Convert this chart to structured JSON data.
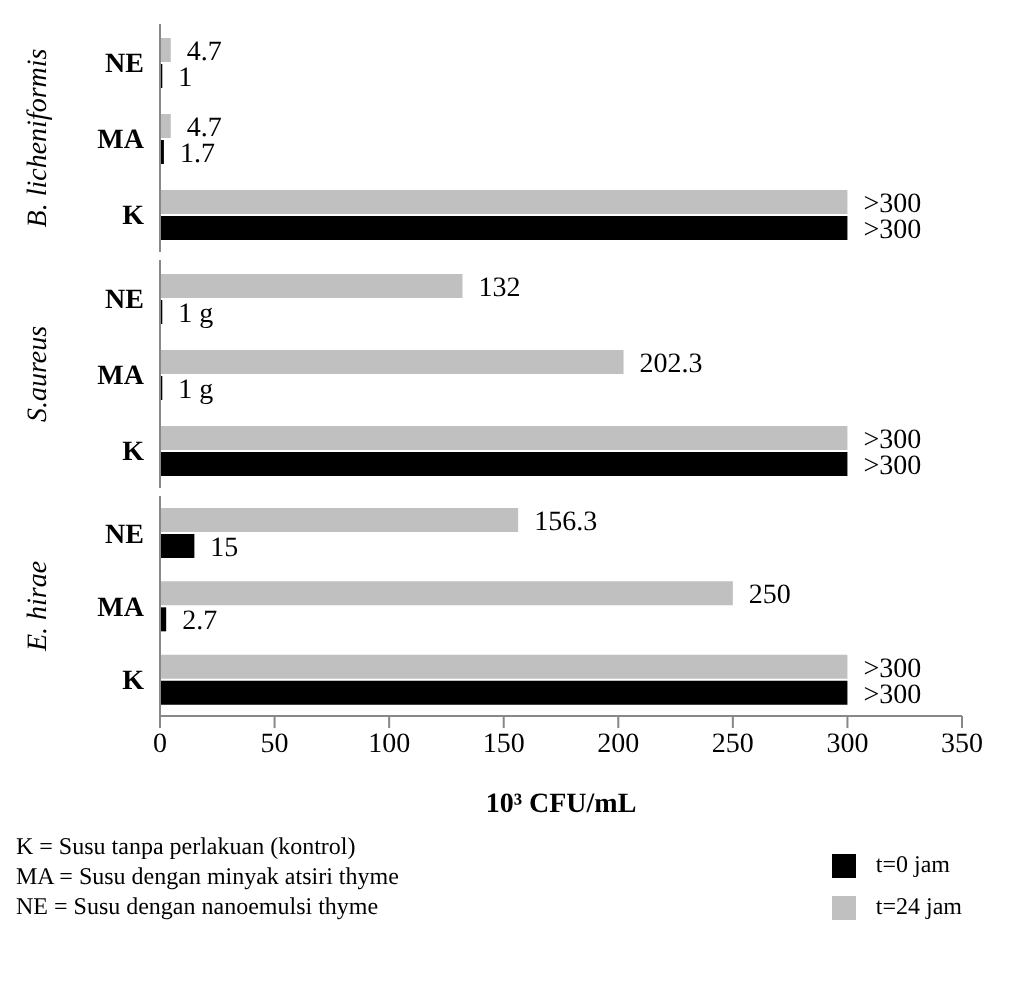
{
  "chart_data": [
    {
      "type": "bar",
      "orientation": "horizontal",
      "ylabel": "B. licheniformis",
      "categories": [
        "NE",
        "MA",
        "K"
      ],
      "xlim": [
        0,
        350
      ],
      "xticks": [
        0,
        50,
        100,
        150,
        200,
        250,
        300,
        350
      ],
      "tick_labels": "y",
      "series": [
        {
          "color": "#000000",
          "values": [
            1,
            1.7,
            300
          ],
          "value_labels": [
            "1",
            "1.7",
            ">300"
          ]
        },
        {
          "color": "#c0c0c0",
          "values": [
            4.7,
            4.7,
            300
          ],
          "value_labels": [
            "4.7",
            "4.7",
            ">300"
          ]
        }
      ]
    },
    {
      "type": "bar",
      "orientation": "horizontal",
      "ylabel": "S.aureus",
      "categories": [
        "NE",
        "MA",
        "K"
      ],
      "xlim": [
        0,
        350
      ],
      "xticks": [
        0,
        50,
        100,
        150,
        200,
        250,
        300,
        350
      ],
      "tick_labels": "y",
      "series": [
        {
          "color": "#000000",
          "values": [
            1,
            1,
            300
          ],
          "value_labels": [
            "1 g",
            "1 g",
            ">300"
          ]
        },
        {
          "color": "#c0c0c0",
          "values": [
            132,
            202.3,
            300
          ],
          "value_labels": [
            "132",
            "202.3",
            ">300"
          ]
        }
      ]
    },
    {
      "type": "bar",
      "orientation": "horizontal",
      "ylabel": "E. hirae",
      "xlabel": "10³ CFU/mL",
      "categories": [
        "NE",
        "MA",
        "K"
      ],
      "xlim": [
        0,
        350
      ],
      "xticks": [
        0,
        50,
        100,
        150,
        200,
        250,
        300,
        350
      ],
      "legend": "bottom right",
      "annotations": [
        "K = Susu tanpa perlakuan (kontrol)",
        "MA = Susu dengan minyak atsiri thyme",
        "NE = Susu dengan nanoemulsi thyme"
      ],
      "series": [
        {
          "name": "t=0 jam",
          "color": "#000000",
          "values": [
            15,
            2.7,
            300
          ],
          "value_labels": [
            "15",
            "2.7",
            ">300"
          ]
        },
        {
          "name": "t=24 jam",
          "color": "#c0c0c0",
          "values": [
            156.3,
            250,
            300
          ],
          "value_labels": [
            "156.3",
            "250",
            ">300"
          ]
        }
      ]
    }
  ]
}
